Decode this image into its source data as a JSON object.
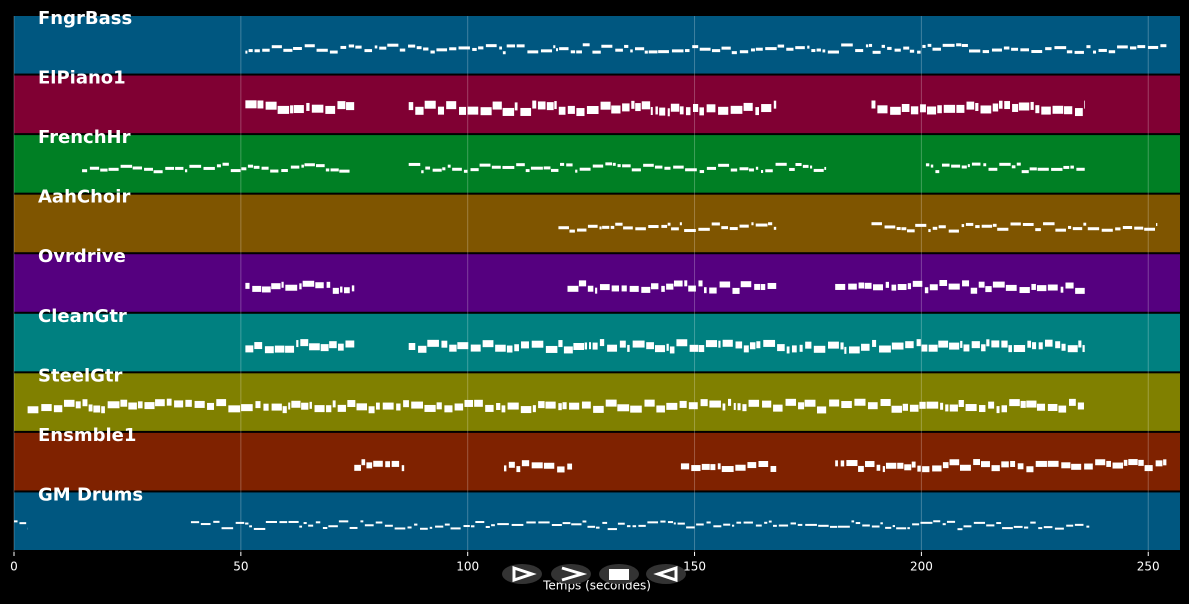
{
  "chart_data": {
    "type": "piano_roll",
    "xlabel": "Temps (secondes)",
    "xlim": [
      0,
      257
    ],
    "xticks": [
      0,
      50,
      100,
      150,
      200,
      250
    ],
    "grid": true,
    "tracks": [
      {
        "name": "FngrBass",
        "color": "#005780",
        "segments": [
          [
            51,
            254
          ]
        ]
      },
      {
        "name": "ElPiano1",
        "color": "#800033",
        "segments": [
          [
            51,
            75
          ],
          [
            87,
            168
          ],
          [
            189,
            236
          ]
        ]
      },
      {
        "name": "FrenchHr",
        "color": "#007f24",
        "segments": [
          [
            15,
            74
          ],
          [
            87,
            179
          ],
          [
            201,
            236
          ]
        ]
      },
      {
        "name": "AahChoir",
        "color": "#7f5500",
        "segments": [
          [
            120,
            168
          ],
          [
            189,
            252
          ]
        ]
      },
      {
        "name": "Ovrdrive",
        "color": "#55007f",
        "segments": [
          [
            51,
            75
          ],
          [
            122,
            168
          ],
          [
            181,
            236
          ]
        ]
      },
      {
        "name": "CleanGtr",
        "color": "#008080",
        "segments": [
          [
            51,
            75
          ],
          [
            87,
            236
          ]
        ]
      },
      {
        "name": "SteelGtr",
        "color": "#808000",
        "segments": [
          [
            3,
            236
          ]
        ]
      },
      {
        "name": "Ensmble1",
        "color": "#7f2200",
        "segments": [
          [
            75,
            86
          ],
          [
            108,
            123
          ],
          [
            147,
            168
          ],
          [
            181,
            254
          ]
        ]
      },
      {
        "name": "GM Drums",
        "color": "#005780",
        "segments": [
          [
            0,
            3
          ],
          [
            39,
            237
          ]
        ]
      }
    ]
  }
}
